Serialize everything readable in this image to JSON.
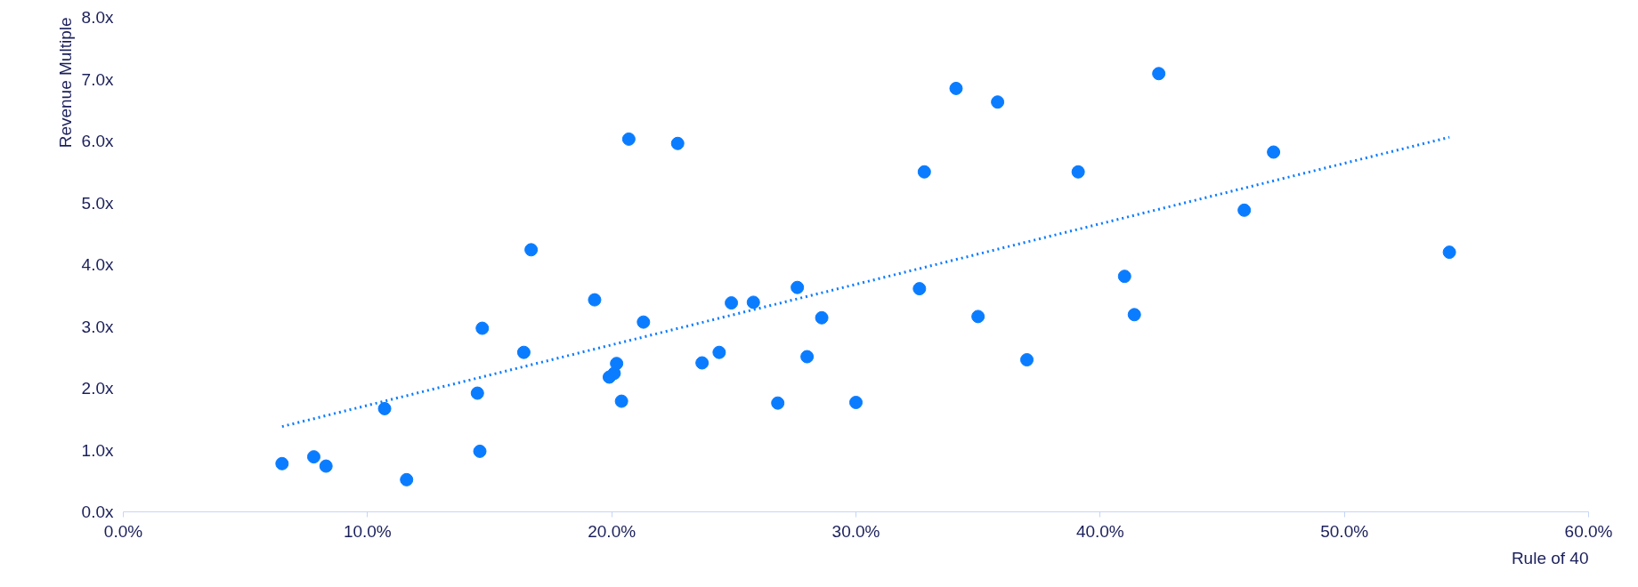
{
  "chart_data": {
    "type": "scatter",
    "xlabel": "Rule of 40",
    "ylabel": "Revenue Multiple",
    "xlim": [
      0,
      60
    ],
    "ylim": [
      0,
      8
    ],
    "xticks": [
      {
        "value": 0,
        "label": "0.0%"
      },
      {
        "value": 10,
        "label": "10.0%"
      },
      {
        "value": 20,
        "label": "20.0%"
      },
      {
        "value": 30,
        "label": "30.0%"
      },
      {
        "value": 40,
        "label": "40.0%"
      },
      {
        "value": 50,
        "label": "50.0%"
      },
      {
        "value": 60,
        "label": "60.0%"
      }
    ],
    "yticks": [
      {
        "value": 0,
        "label": "0.0x"
      },
      {
        "value": 1,
        "label": "1.0x"
      },
      {
        "value": 2,
        "label": "2.0x"
      },
      {
        "value": 3,
        "label": "3.0x"
      },
      {
        "value": 4,
        "label": "4.0x"
      },
      {
        "value": 5,
        "label": "5.0x"
      },
      {
        "value": 6,
        "label": "6.0x"
      },
      {
        "value": 7,
        "label": "7.0x"
      },
      {
        "value": 8,
        "label": "8.0x"
      }
    ],
    "grid": false,
    "series": [
      {
        "marker": "circle",
        "color": "#0a7cff",
        "x": [
          6.5,
          7.8,
          8.3,
          10.7,
          11.6,
          14.5,
          14.6,
          14.7,
          16.4,
          16.7,
          19.3,
          19.9,
          20.1,
          20.2,
          20.4,
          20.7,
          21.3,
          22.7,
          23.7,
          24.4,
          24.9,
          25.8,
          26.8,
          27.6,
          28.0,
          28.6,
          30.0,
          32.6,
          32.8,
          34.1,
          35.0,
          35.8,
          37.0,
          39.1,
          41.0,
          41.4,
          42.4,
          45.9,
          47.1,
          54.3
        ],
        "values": [
          0.78,
          0.89,
          0.74,
          1.67,
          0.52,
          1.92,
          0.98,
          2.97,
          2.58,
          4.24,
          3.43,
          2.18,
          2.24,
          2.4,
          1.79,
          6.03,
          3.07,
          5.96,
          2.41,
          2.58,
          3.38,
          3.39,
          1.76,
          3.63,
          2.51,
          3.14,
          1.77,
          3.61,
          5.5,
          6.85,
          3.16,
          6.63,
          2.46,
          5.5,
          3.81,
          3.19,
          7.09,
          4.88,
          5.82,
          4.2
        ]
      },
      {
        "type": "line",
        "color": "#0a7cff",
        "line_style": "dotted",
        "x": [
          6.5,
          54.3
        ],
        "values": [
          1.38,
          6.06
        ]
      }
    ]
  }
}
